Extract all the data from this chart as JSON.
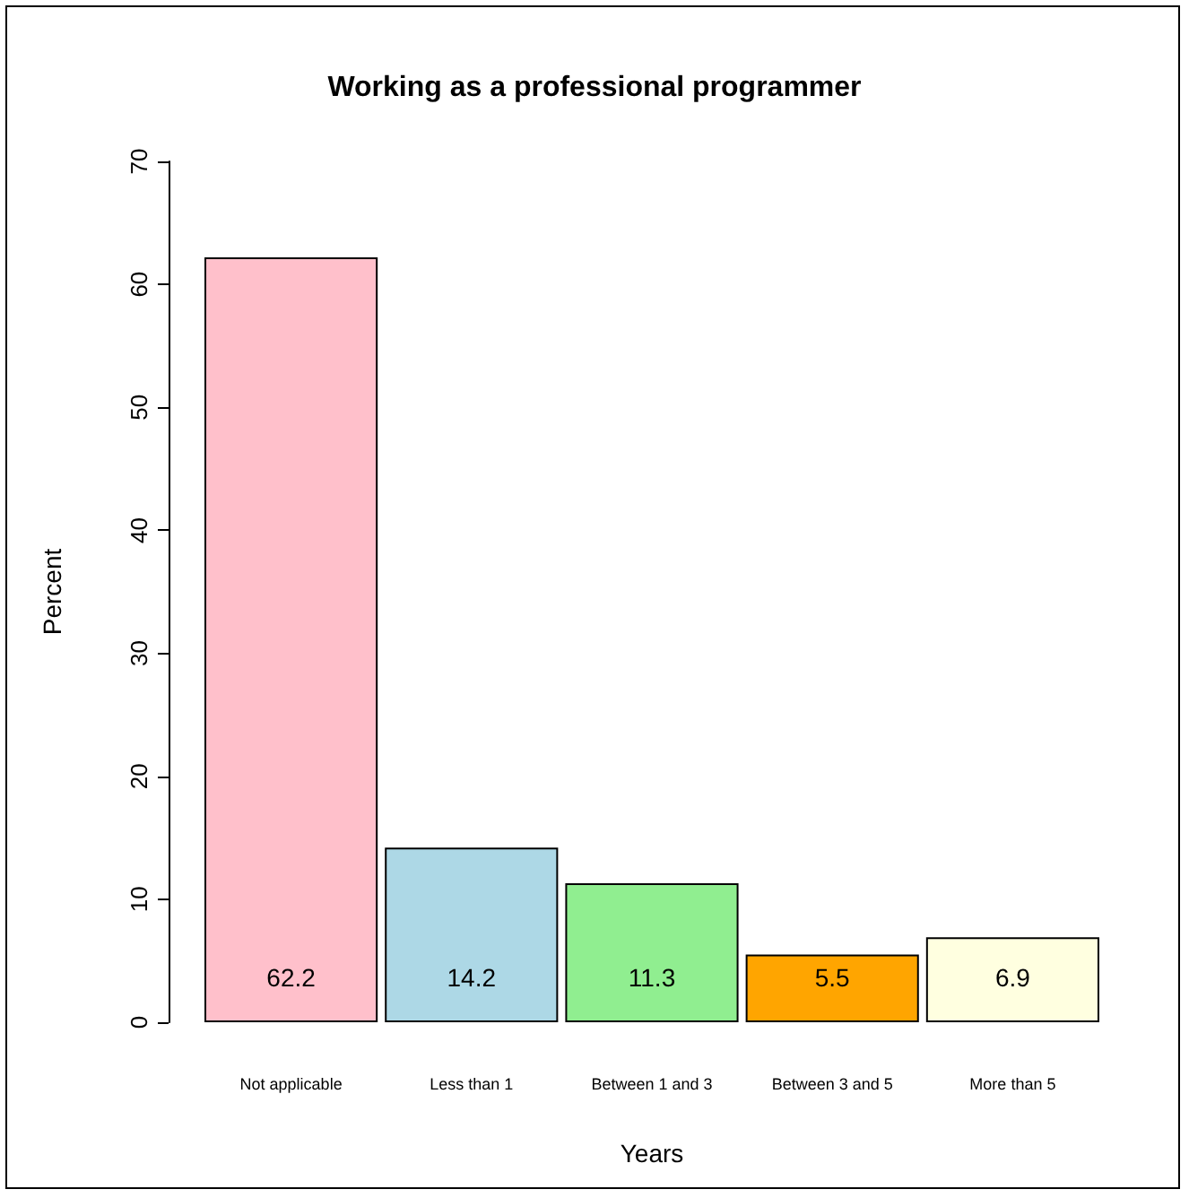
{
  "chart_data": {
    "type": "bar",
    "title": "Working as a professional programmer",
    "xlabel": "Years",
    "ylabel": "Percent",
    "categories": [
      "Not applicable",
      "Less than 1",
      "Between 1 and 3",
      "Between 3 and 5",
      "More than 5"
    ],
    "values": [
      62.2,
      14.2,
      11.3,
      5.5,
      6.9
    ],
    "colors": [
      "#ffc0cb",
      "#add8e6",
      "#90ee90",
      "#ffa500",
      "#ffffe0"
    ],
    "ylim": [
      0,
      70
    ],
    "yticks": [
      0,
      10,
      20,
      30,
      40,
      50,
      60,
      70
    ],
    "data_labels": true,
    "grid": false
  }
}
